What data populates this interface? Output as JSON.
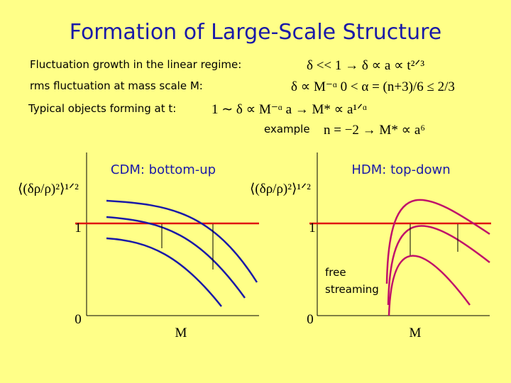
{
  "title": "Formation of Large-Scale Structure",
  "rows": [
    {
      "label": "Fluctuation growth in the linear regime:",
      "formula": "δ << 1   →   δ ∝ a ∝ t²ᐟ³"
    },
    {
      "label": "rms fluctuation at mass scale M:",
      "formula": "δ ∝ M⁻ᵅ     0 < α = (n+3)/6 ≤ 2/3"
    },
    {
      "label": "Typical objects forming at t:",
      "formula": "1 ∼ δ ∝ M⁻ᵅ a   →   M* ∝ a¹ᐟᵅ"
    },
    {
      "label": "example",
      "formula": "n = −2   →   M* ∝ a⁶"
    }
  ],
  "panels": [
    {
      "title": "CDM: bottom-up",
      "y_label": "⟨(δρ/ρ)²⟩¹ᐟ²",
      "tick_top": "1",
      "tick_bottom": "0",
      "x_label": "M"
    },
    {
      "title": "HDM: top-down",
      "y_label": "⟨(δρ/ρ)²⟩¹ᐟ²",
      "tick_top": "1",
      "tick_bottom": "0",
      "x_label": "M",
      "annotation": [
        "free",
        "streaming"
      ]
    }
  ]
}
